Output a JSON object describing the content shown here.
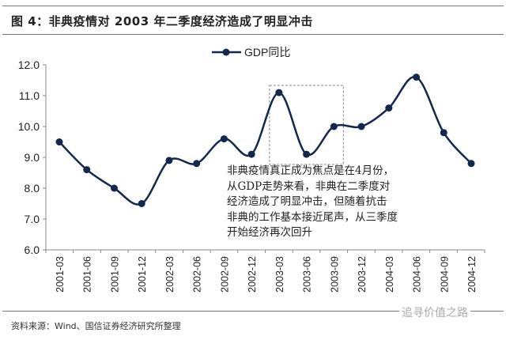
{
  "figure_title": "图 4：非典疫情对 2003 年二季度经济造成了明显冲击",
  "source": "资料来源：Wind、国信证券经济研究所整理",
  "watermark": "追寻价值之路",
  "chart_data": {
    "type": "line",
    "title": "",
    "categories": [
      "2001-03",
      "2001-06",
      "2001-09",
      "2001-12",
      "2002-03",
      "2002-06",
      "2002-09",
      "2002-12",
      "2003-03",
      "2003-06",
      "2003-09",
      "2003-12",
      "2004-03",
      "2004-06",
      "2004-09",
      "2004-12"
    ],
    "series": [
      {
        "name": "GDP同比",
        "values": [
          9.5,
          8.6,
          8.0,
          7.5,
          8.9,
          8.8,
          9.6,
          9.1,
          11.1,
          9.1,
          10.0,
          10.0,
          10.6,
          11.6,
          9.8,
          8.8
        ],
        "color": "#12284c"
      }
    ],
    "ylim": [
      6.0,
      12.0
    ],
    "yticks": [
      "6.0",
      "7.0",
      "8.0",
      "9.0",
      "10.0",
      "11.0",
      "12.0"
    ],
    "grid": false,
    "legend": "top-center",
    "smooth": true,
    "highlight_box": [
      "2003-03",
      "2003-09"
    ],
    "annotation": [
      "非典疫情真正成为焦点是在4月份，",
      "从GDP走势来看，非典在二季度对",
      "经济造成了明显冲击，但随着抗击",
      "非典的工作基本接近尾声，从三季度",
      "开始经济再次回升"
    ]
  }
}
